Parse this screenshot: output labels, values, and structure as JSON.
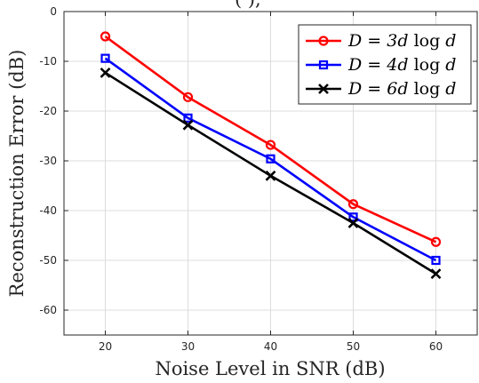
{
  "chart_data": {
    "type": "line",
    "title_fragment": "(                  ),",
    "xlabel": "Noise Level in SNR (dB)",
    "ylabel": "Reconstruction Error (dB)",
    "x": [
      20,
      30,
      40,
      50,
      60
    ],
    "xlim": [
      15,
      65
    ],
    "ylim": [
      -65,
      0
    ],
    "xticks": [
      "20",
      "30",
      "40",
      "50",
      "60"
    ],
    "yticks": [
      "0",
      "-10",
      "-20",
      "-30",
      "-40",
      "-50",
      "-60"
    ],
    "grid": true,
    "legend_position": "top-right",
    "series": [
      {
        "name": "D = 3d log d",
        "color": "#ff0000",
        "marker": "circle",
        "values": [
          -5.0,
          -17.2,
          -26.8,
          -38.7,
          -46.3
        ]
      },
      {
        "name": "D = 4d log d",
        "color": "#0000ff",
        "marker": "square",
        "values": [
          -9.4,
          -21.4,
          -29.6,
          -41.3,
          -50.0
        ]
      },
      {
        "name": "D = 6d log d",
        "color": "#000000",
        "marker": "x",
        "values": [
          -12.3,
          -22.8,
          -33.0,
          -42.5,
          -52.7
        ]
      }
    ]
  }
}
